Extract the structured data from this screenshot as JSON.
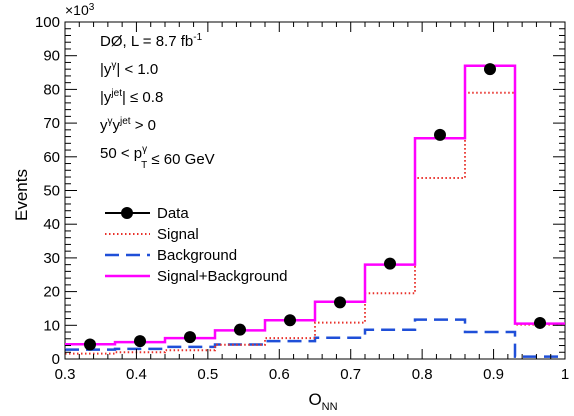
{
  "chart_data": {
    "type": "histogram",
    "xlabel": "O",
    "xlabel_sub": "NN",
    "ylabel": "Events",
    "y_multiplier_label": "×10",
    "y_multiplier_exp": "3",
    "xlim": [
      0.3,
      1.0
    ],
    "ylim": [
      0,
      100
    ],
    "x_ticks": [
      0.3,
      0.4,
      0.5,
      0.6,
      0.7,
      0.8,
      0.9,
      1.0
    ],
    "x_tick_labels": [
      "0.3",
      "0.4",
      "0.5",
      "0.6",
      "0.7",
      "0.8",
      "0.9",
      "1"
    ],
    "y_ticks": [
      0,
      10,
      20,
      30,
      40,
      50,
      60,
      70,
      80,
      90,
      100
    ],
    "y_tick_labels": [
      "0",
      "10",
      "20",
      "30",
      "40",
      "50",
      "60",
      "70",
      "80",
      "90",
      "100"
    ],
    "bin_edges": [
      0.3,
      0.37,
      0.44,
      0.51,
      0.58,
      0.65,
      0.72,
      0.79,
      0.86,
      0.93,
      1.0
    ],
    "series": [
      {
        "name": "Data",
        "style": "markers",
        "color": "#000000",
        "x": [
          0.335,
          0.405,
          0.475,
          0.545,
          0.615,
          0.685,
          0.755,
          0.825,
          0.895,
          0.965
        ],
        "values": [
          4.3,
          5.3,
          6.5,
          8.7,
          11.5,
          16.8,
          28.3,
          66.5,
          86.0,
          10.7
        ]
      },
      {
        "name": "Signal",
        "style": "dotted",
        "color": "#e8302a",
        "values": [
          1.6,
          2.0,
          2.6,
          4.2,
          6.2,
          10.8,
          19.5,
          53.7,
          79.0,
          10.2
        ]
      },
      {
        "name": "Background",
        "style": "dashed",
        "color": "#1f4fd8",
        "values": [
          2.8,
          3.0,
          3.6,
          4.3,
          5.3,
          6.3,
          8.7,
          11.7,
          8.0,
          0.7
        ]
      },
      {
        "name": "Signal+Background",
        "style": "solid",
        "color": "#ff00ff",
        "values": [
          4.4,
          5.0,
          6.2,
          8.5,
          11.5,
          17.0,
          28.0,
          65.5,
          87.0,
          10.5
        ]
      }
    ],
    "legend_placement": "middle-left",
    "annotations": [
      {
        "text": "DØ, L = 8.7 fb",
        "sup": "-1"
      },
      {
        "parts": [
          {
            "t": "|y"
          },
          {
            "sup": "γ"
          },
          {
            "t": "| < 1.0"
          }
        ]
      },
      {
        "parts": [
          {
            "t": "|y"
          },
          {
            "sup": "jet"
          },
          {
            "t": "| ≤ 0.8"
          }
        ]
      },
      {
        "parts": [
          {
            "t": "y"
          },
          {
            "sup": "γ"
          },
          {
            "t": "y"
          },
          {
            "sup": "jet"
          },
          {
            "t": " > 0"
          }
        ]
      },
      {
        "parts": [
          {
            "t": "50 < p"
          },
          {
            "sup": "γ"
          },
          {
            "sub": "T"
          },
          {
            "t": " ≤ 60 GeV"
          }
        ]
      }
    ]
  }
}
